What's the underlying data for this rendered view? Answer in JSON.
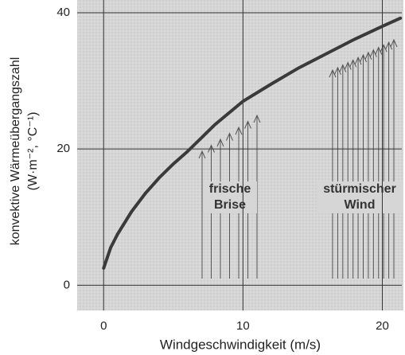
{
  "chart_data": {
    "type": "line",
    "x_label": "Windgeschwindigkeit (m/s)",
    "y_label": [
      "konvektive Wärmeübergangszahl",
      "(W·m⁻², °C⁻¹)"
    ],
    "x": [
      0,
      0.5,
      1,
      2,
      3,
      4,
      5,
      6,
      8,
      10,
      12,
      14,
      16,
      18,
      20,
      21.3
    ],
    "values": [
      2.5,
      5.5,
      7.5,
      10.8,
      13.5,
      15.8,
      17.8,
      19.6,
      23.6,
      27,
      29.5,
      31.9,
      34,
      36.1,
      38,
      39.2
    ],
    "color": "#3a3a3a",
    "xlim": [
      -1.9,
      21.4
    ],
    "ylim": [
      -3.7,
      40
    ],
    "xticks": [
      0,
      10,
      20
    ],
    "yticks": [
      0,
      20,
      40
    ],
    "grid": true,
    "annotations": [
      {
        "lines": [
          "frische",
          "Brise"
        ]
      },
      {
        "lines": [
          "stürmischer",
          "Wind"
        ]
      }
    ]
  }
}
